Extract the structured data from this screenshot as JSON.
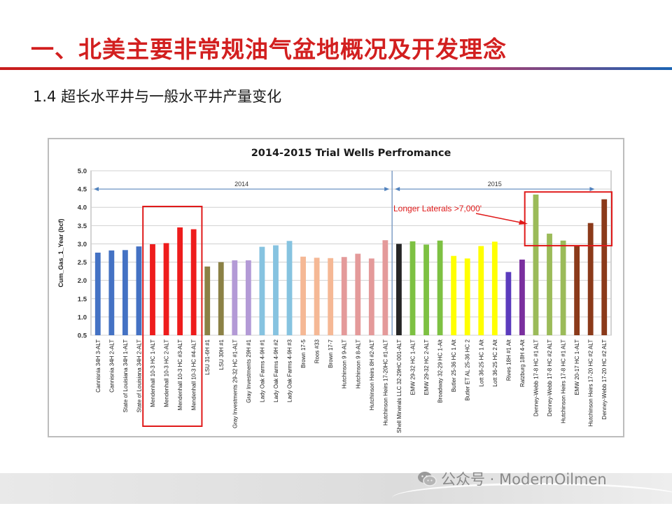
{
  "slide": {
    "title": "一、北美主要非常规油气盆地概况及开发理念",
    "subtitle": "1.4 超长水平井与一般水平井产量变化",
    "watermark": "公众号 · ModernOilmen"
  },
  "chart_data": {
    "type": "bar",
    "title": "2014-2015 Trial Wells Perfromance",
    "xlabel": "",
    "ylabel": "Cum_Gas_1_Year (bcf)",
    "ylim": [
      0.5,
      5.0
    ],
    "yticks": [
      "0.5",
      "1.0",
      "1.5",
      "2.0",
      "2.5",
      "3.0",
      "3.5",
      "4.0",
      "4.5",
      "5.0"
    ],
    "grid": true,
    "periods": [
      {
        "label": "2014",
        "from": 0,
        "to": 21
      },
      {
        "label": "2015",
        "from": 22,
        "to": 36
      }
    ],
    "annotation": "Longer Laterals >7,000'",
    "categories": [
      "Cannisnia 34H 3-ALT",
      "Cannisnia 34H 2-ALT",
      "State of Louisiana 34H 1-ALT",
      "State of Louisiana 34H 2-ALT",
      "Mendenhall 10-3 HC 1-ALT",
      "Mendenhall 10-3 HC 2-ALT",
      "Mendenhall 10-3 HC #3-ALT",
      "Mendenhall 10-3 HC #4-ALT",
      "LSU 31-6H #1",
      "LSU 30H #1",
      "Gray Investments 29-32 HC #1-ALT",
      "Gray Investments 29H #1",
      "Lady Oak Farms 4-9H #1",
      "Lady Oak Farms 4-9H #2",
      "Lady Oak Farms 4-9H #3",
      "Brown 17-5",
      "Roos #33",
      "Brown 17-7",
      "Hutchinson 9 9-ALT",
      "Hutchinson 9 8-ALT",
      "Hutchinson Heirs 8H #2-ALT",
      "Hutchinson Heirs 17-20HC #1-ALT",
      "Shell Minerals LLC 32-29HC 001-ALT",
      "EMW 29-32 HC 1-ALT",
      "EMW 29-32 HC 2-ALT",
      "Broadway 32-29 HC 1-Alt",
      "Butler 25-36 HC 1 Alt",
      "Butler ET AL 25-36 HC 2",
      "Lott 36-25 HC 1 Alt",
      "Lott 36-25 HC 2 Alt",
      "Rives 18H #1 Alt",
      "Ratzburg 18H 4-Alt",
      "Denney-Webb 17-8 HC #1 ALT",
      "Denney-Webb 17-8 HC #2 ALT",
      "Hutchinson Heirs 17-8 HC #1 ALT",
      "EMW 20-17 HC 1-ALT",
      "Hutchinson Heirs 17-20 HC #2 ALT",
      "Denney-Webb 17-20 HC #2 ALT"
    ],
    "values": [
      2.76,
      2.82,
      2.83,
      2.93,
      2.99,
      3.02,
      3.45,
      3.4,
      2.38,
      2.5,
      2.55,
      2.55,
      2.92,
      2.96,
      3.08,
      2.65,
      2.62,
      2.61,
      2.64,
      2.73,
      2.6,
      3.1,
      3.0,
      3.07,
      2.98,
      3.09,
      2.67,
      2.6,
      2.94,
      3.06,
      2.23,
      2.57,
      4.35,
      3.28,
      3.09,
      2.95,
      3.57,
      4.22
    ],
    "colors": [
      "#4472c4",
      "#4472c4",
      "#4472c4",
      "#4472c4",
      "#ee1c1c",
      "#ee1c1c",
      "#ee1c1c",
      "#ee1c1c",
      "#8b8145",
      "#8b8145",
      "#b39ad6",
      "#b39ad6",
      "#86c3e0",
      "#86c3e0",
      "#86c3e0",
      "#f5b895",
      "#f5b895",
      "#f5b895",
      "#e49a9a",
      "#e49a9a",
      "#e49a9a",
      "#e49a9a",
      "#262626",
      "#7dc142",
      "#7dc142",
      "#7dc142",
      "#ffff00",
      "#ffff00",
      "#ffff00",
      "#ffff00",
      "#5b3bbd",
      "#7a2f9e",
      "#9bbb59",
      "#9bbb59",
      "#9bbb59",
      "#8b3a1a",
      "#8b3a1a",
      "#8b3a1a"
    ],
    "highlight_groups": [
      [
        4,
        7
      ],
      [
        32,
        37
      ]
    ]
  }
}
